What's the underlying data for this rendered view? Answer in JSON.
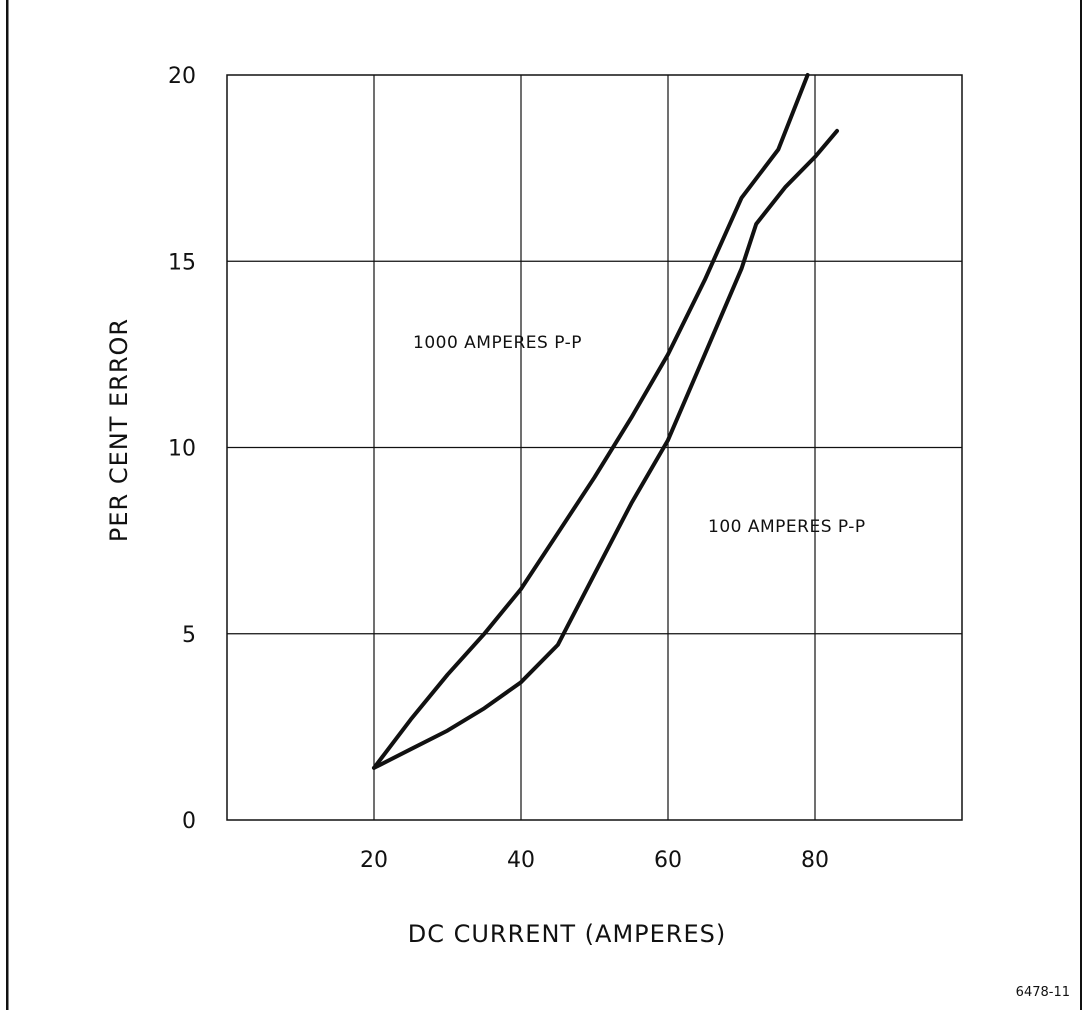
{
  "chart_data": {
    "type": "line",
    "title": "",
    "xlabel": "DC CURRENT (AMPERES)",
    "ylabel": "PER CENT ERROR",
    "xlim": [
      0,
      100
    ],
    "ylim": [
      0,
      20
    ],
    "x_ticks": [
      20,
      40,
      60,
      80
    ],
    "y_ticks": [
      0,
      5,
      10,
      15,
      20
    ],
    "x_tick_labels": [
      "20",
      "40",
      "60",
      "80"
    ],
    "y_tick_labels": [
      "0",
      "5",
      "10",
      "15",
      "20"
    ],
    "grid": true,
    "series": [
      {
        "name": "1000 AMPERES P-P",
        "x": [
          20,
          25,
          30,
          35,
          40,
          45,
          50,
          55,
          60,
          65,
          70,
          75,
          79
        ],
        "y": [
          1.4,
          2.7,
          3.9,
          5.0,
          6.2,
          7.7,
          9.2,
          10.8,
          12.5,
          14.5,
          16.7,
          18.0,
          20.0
        ]
      },
      {
        "name": "100 AMPERES P-P",
        "x": [
          20,
          25,
          30,
          35,
          40,
          45,
          50,
          55,
          60,
          65,
          70,
          72,
          76,
          80,
          83
        ],
        "y": [
          1.4,
          1.9,
          2.4,
          3.0,
          3.7,
          4.7,
          6.6,
          8.5,
          10.2,
          12.5,
          14.8,
          16.0,
          17.0,
          17.8,
          18.5
        ]
      }
    ],
    "figure_number": "6478-11",
    "color": "#111111"
  }
}
